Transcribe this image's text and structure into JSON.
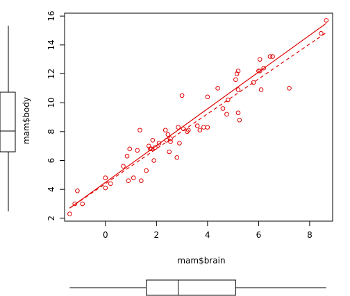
{
  "chart_data": {
    "type": "scatter",
    "xlabel": "mam$brain",
    "ylabel": "mam$body",
    "xlim": [
      -1.6,
      8.9
    ],
    "ylim": [
      1.8,
      16.2
    ],
    "x_ticks": [
      "0",
      "2",
      "4",
      "6",
      "8"
    ],
    "y_ticks": [
      "2",
      "4",
      "6",
      "8",
      "10",
      "12",
      "14",
      "16"
    ],
    "grid": false,
    "point_color": "#e00000",
    "points": [
      [
        -1.4,
        2.3
      ],
      [
        -1.2,
        3.0
      ],
      [
        -1.1,
        3.9
      ],
      [
        -0.9,
        3.0
      ],
      [
        0.0,
        4.1
      ],
      [
        0.0,
        4.8
      ],
      [
        0.2,
        4.4
      ],
      [
        0.7,
        5.6
      ],
      [
        0.85,
        6.3
      ],
      [
        0.9,
        4.6
      ],
      [
        0.95,
        6.8
      ],
      [
        1.1,
        4.8
      ],
      [
        1.25,
        6.7
      ],
      [
        1.35,
        8.1
      ],
      [
        1.4,
        4.6
      ],
      [
        1.6,
        5.3
      ],
      [
        1.7,
        7.0
      ],
      [
        1.75,
        6.8
      ],
      [
        1.8,
        6.8
      ],
      [
        1.85,
        7.4
      ],
      [
        1.9,
        6.0
      ],
      [
        1.95,
        6.9
      ],
      [
        2.1,
        7.2
      ],
      [
        2.35,
        8.1
      ],
      [
        2.4,
        7.4
      ],
      [
        2.45,
        7.8
      ],
      [
        2.5,
        6.6
      ],
      [
        2.55,
        7.3
      ],
      [
        2.55,
        7.5
      ],
      [
        2.8,
        6.2
      ],
      [
        2.85,
        8.3
      ],
      [
        2.9,
        7.2
      ],
      [
        3.0,
        10.5
      ],
      [
        3.05,
        8.2
      ],
      [
        3.2,
        8.0
      ],
      [
        3.25,
        8.1
      ],
      [
        3.6,
        8.4
      ],
      [
        3.7,
        8.1
      ],
      [
        3.85,
        8.3
      ],
      [
        4.0,
        8.3
      ],
      [
        4.0,
        10.4
      ],
      [
        4.4,
        11.0
      ],
      [
        4.6,
        9.6
      ],
      [
        4.75,
        9.2
      ],
      [
        4.8,
        10.2
      ],
      [
        5.1,
        11.6
      ],
      [
        5.15,
        12.0
      ],
      [
        5.2,
        12.2
      ],
      [
        5.2,
        9.3
      ],
      [
        5.25,
        8.8
      ],
      [
        5.2,
        10.9
      ],
      [
        5.8,
        11.4
      ],
      [
        6.0,
        12.2
      ],
      [
        6.05,
        13.0
      ],
      [
        6.05,
        12.2
      ],
      [
        6.1,
        10.9
      ],
      [
        6.2,
        12.4
      ],
      [
        6.45,
        13.2
      ],
      [
        6.55,
        13.2
      ],
      [
        7.2,
        11.0
      ],
      [
        8.45,
        14.8
      ],
      [
        8.65,
        15.7
      ]
    ],
    "fit_solid": [
      [
        -1.4,
        2.7
      ],
      [
        8.65,
        15.5
      ]
    ],
    "fit_dashed": [
      [
        -1.4,
        2.7
      ],
      [
        8.65,
        14.85
      ]
    ],
    "boxplot_x": {
      "min": -1.4,
      "q1": 1.6,
      "median": 2.85,
      "q3": 5.1,
      "max": 8.65
    },
    "boxplot_y": {
      "min": 2.3,
      "q1": 6.6,
      "median": 8.1,
      "q3": 10.9,
      "max": 15.7
    }
  }
}
